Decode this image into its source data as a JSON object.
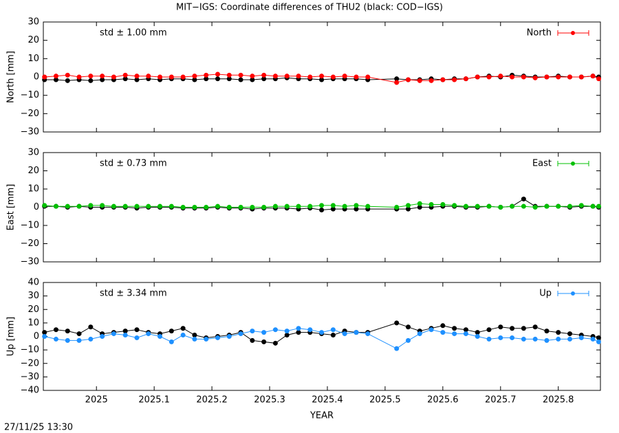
{
  "title": "MIT−IGS: Coordinate differences of THU2 (black: COD−IGS)",
  "timestamp": "27/11/25 13:30",
  "chart_data": [
    {
      "type": "line",
      "ylabel": "North [mm]",
      "annotation": "std ± 1.00 mm",
      "xlim": [
        2024.908,
        2025.873
      ],
      "xticks": [
        2025,
        2025.1,
        2025.2,
        2025.3,
        2025.4,
        2025.5,
        2025.6,
        2025.7,
        2025.8
      ],
      "ylim": [
        -30,
        30
      ],
      "yticks": [
        30,
        20,
        10,
        0,
        {
          "value": -10,
          "label": "−10"
        },
        {
          "value": -20,
          "label": "−20"
        },
        {
          "value": -30,
          "label": "−30"
        }
      ],
      "x": [
        2024.91,
        2024.93,
        2024.95,
        2024.97,
        2024.99,
        2025.01,
        2025.03,
        2025.05,
        2025.07,
        2025.09,
        2025.11,
        2025.13,
        2025.15,
        2025.17,
        2025.19,
        2025.21,
        2025.23,
        2025.25,
        2025.27,
        2025.29,
        2025.31,
        2025.33,
        2025.35,
        2025.37,
        2025.39,
        2025.41,
        2025.43,
        2025.45,
        2025.47,
        2025.52,
        2025.54,
        2025.56,
        2025.58,
        2025.6,
        2025.62,
        2025.64,
        2025.66,
        2025.68,
        2025.7,
        2025.72,
        2025.74,
        2025.76,
        2025.78,
        2025.8,
        2025.82,
        2025.84,
        2025.86,
        2025.87
      ],
      "series": [
        {
          "color": "#000000",
          "values": [
            -1.5,
            -1.5,
            -2,
            -1.5,
            -2,
            -1.5,
            -1.5,
            -1,
            -1.5,
            -1,
            -1.5,
            -1,
            -1,
            -1.5,
            -1,
            -1,
            -1,
            -1.5,
            -1.5,
            -1,
            -1,
            -0.5,
            -1,
            -1,
            -1.5,
            -1,
            -1,
            -1,
            -1.5,
            -1,
            -1.5,
            -1.5,
            -1,
            -1.5,
            -1,
            -1,
            0,
            0.5,
            0,
            1,
            0.5,
            0,
            0,
            0.5,
            0,
            0,
            0.5,
            0
          ]
        },
        {
          "name": "North",
          "color": "#ff0000",
          "values": [
            0,
            0.5,
            1,
            0,
            0.5,
            0.5,
            0,
            1,
            0.5,
            0.5,
            0,
            0,
            0,
            0.5,
            1,
            1.5,
            1,
            1,
            0.5,
            1,
            0.5,
            0.5,
            0.5,
            0,
            0.5,
            0,
            0.5,
            0,
            0,
            -3,
            -1.5,
            -2,
            -2,
            -1.5,
            -1.5,
            -1,
            0,
            0,
            0.5,
            0,
            0,
            -0.5,
            0,
            0,
            0,
            0,
            0.5,
            -1
          ]
        }
      ]
    },
    {
      "type": "line",
      "ylabel": "East [mm]",
      "annotation": "std ± 0.73 mm",
      "xlim": [
        2024.908,
        2025.873
      ],
      "xticks": [
        2025,
        2025.1,
        2025.2,
        2025.3,
        2025.4,
        2025.5,
        2025.6,
        2025.7,
        2025.8
      ],
      "ylim": [
        -30,
        30
      ],
      "yticks": [
        30,
        20,
        10,
        0,
        {
          "value": -10,
          "label": "−10"
        },
        {
          "value": -20,
          "label": "−20"
        },
        {
          "value": -30,
          "label": "−30"
        }
      ],
      "x": [
        2024.91,
        2024.93,
        2024.95,
        2024.97,
        2024.99,
        2025.01,
        2025.03,
        2025.05,
        2025.07,
        2025.09,
        2025.11,
        2025.13,
        2025.15,
        2025.17,
        2025.19,
        2025.21,
        2025.23,
        2025.25,
        2025.27,
        2025.29,
        2025.31,
        2025.33,
        2025.35,
        2025.37,
        2025.39,
        2025.41,
        2025.43,
        2025.45,
        2025.47,
        2025.52,
        2025.54,
        2025.56,
        2025.58,
        2025.6,
        2025.62,
        2025.64,
        2025.66,
        2025.68,
        2025.7,
        2025.72,
        2025.74,
        2025.76,
        2025.78,
        2025.8,
        2025.82,
        2025.84,
        2025.86,
        2025.87
      ],
      "series": [
        {
          "color": "#000000",
          "values": [
            0.5,
            0.5,
            0,
            0.5,
            0,
            0,
            0,
            0,
            -0.5,
            0,
            0,
            0,
            -0.5,
            -0.5,
            -0.5,
            0,
            -0.5,
            -0.5,
            -1,
            -0.5,
            -0.5,
            -0.5,
            -1,
            -0.5,
            -1.5,
            -1,
            -1,
            -1,
            -1,
            -1,
            -1,
            0,
            0,
            0.5,
            0.5,
            0,
            0,
            0.5,
            0,
            0.5,
            4.5,
            0.5,
            0.5,
            0.5,
            0,
            0.5,
            0.5,
            0
          ]
        },
        {
          "name": "East",
          "color": "#00c000",
          "values": [
            1,
            0.5,
            0.5,
            0.5,
            1,
            1,
            0.5,
            0.5,
            0.5,
            0.5,
            0.5,
            0.5,
            0,
            0,
            0,
            0.5,
            0,
            0,
            0,
            0,
            0.5,
            0.5,
            0.5,
            0.5,
            1,
            1,
            0.5,
            1,
            0.5,
            0,
            1,
            2,
            1.5,
            1.5,
            1,
            0.5,
            0.5,
            0.5,
            0,
            0.5,
            0.5,
            0,
            0.5,
            0.5,
            0.5,
            1,
            0.5,
            0.5
          ]
        }
      ]
    },
    {
      "type": "line",
      "ylabel": "Up [mm]",
      "annotation": "std ± 3.34 mm",
      "xlabel": "YEAR",
      "xlim": [
        2024.908,
        2025.873
      ],
      "xticks": [
        2025,
        2025.1,
        2025.2,
        2025.3,
        2025.4,
        2025.5,
        2025.6,
        2025.7,
        2025.8
      ],
      "ylim": [
        -40,
        40
      ],
      "yticks": [
        40,
        30,
        20,
        10,
        0,
        {
          "value": -10,
          "label": "−10"
        },
        {
          "value": -20,
          "label": "−20"
        },
        {
          "value": -30,
          "label": "−30"
        },
        {
          "value": -40,
          "label": "−40"
        }
      ],
      "x": [
        2024.91,
        2024.93,
        2024.95,
        2024.97,
        2024.99,
        2025.01,
        2025.03,
        2025.05,
        2025.07,
        2025.09,
        2025.11,
        2025.13,
        2025.15,
        2025.17,
        2025.19,
        2025.21,
        2025.23,
        2025.25,
        2025.27,
        2025.29,
        2025.31,
        2025.33,
        2025.35,
        2025.37,
        2025.39,
        2025.41,
        2025.43,
        2025.45,
        2025.47,
        2025.52,
        2025.54,
        2025.56,
        2025.58,
        2025.6,
        2025.62,
        2025.64,
        2025.66,
        2025.68,
        2025.7,
        2025.72,
        2025.74,
        2025.76,
        2025.78,
        2025.8,
        2025.82,
        2025.84,
        2025.86,
        2025.87
      ],
      "series": [
        {
          "color": "#000000",
          "values": [
            3,
            5,
            4,
            2,
            7,
            2,
            3,
            4,
            5,
            3,
            2,
            4,
            6,
            1,
            -1,
            0,
            1,
            3,
            -3,
            -4,
            -5,
            1,
            3,
            3,
            2,
            1,
            4,
            3,
            3,
            10,
            7,
            4,
            6,
            8,
            6,
            5,
            3,
            5,
            7,
            6,
            6,
            7,
            4,
            3,
            2,
            1,
            0,
            -1
          ]
        },
        {
          "name": "Up",
          "color": "#1e90ff",
          "values": [
            0,
            -2,
            -3,
            -3,
            -2,
            0,
            2,
            1,
            -1,
            2,
            0,
            -4,
            1,
            -2,
            -2,
            -1,
            0,
            2,
            4,
            3,
            5,
            4,
            6,
            5,
            3,
            5,
            2,
            3,
            2,
            -9,
            -3,
            2,
            5,
            3,
            2,
            2,
            0,
            -2,
            -1,
            -1,
            -2,
            -2,
            -3,
            -2,
            -2,
            -1,
            -2,
            -4
          ]
        }
      ]
    }
  ]
}
